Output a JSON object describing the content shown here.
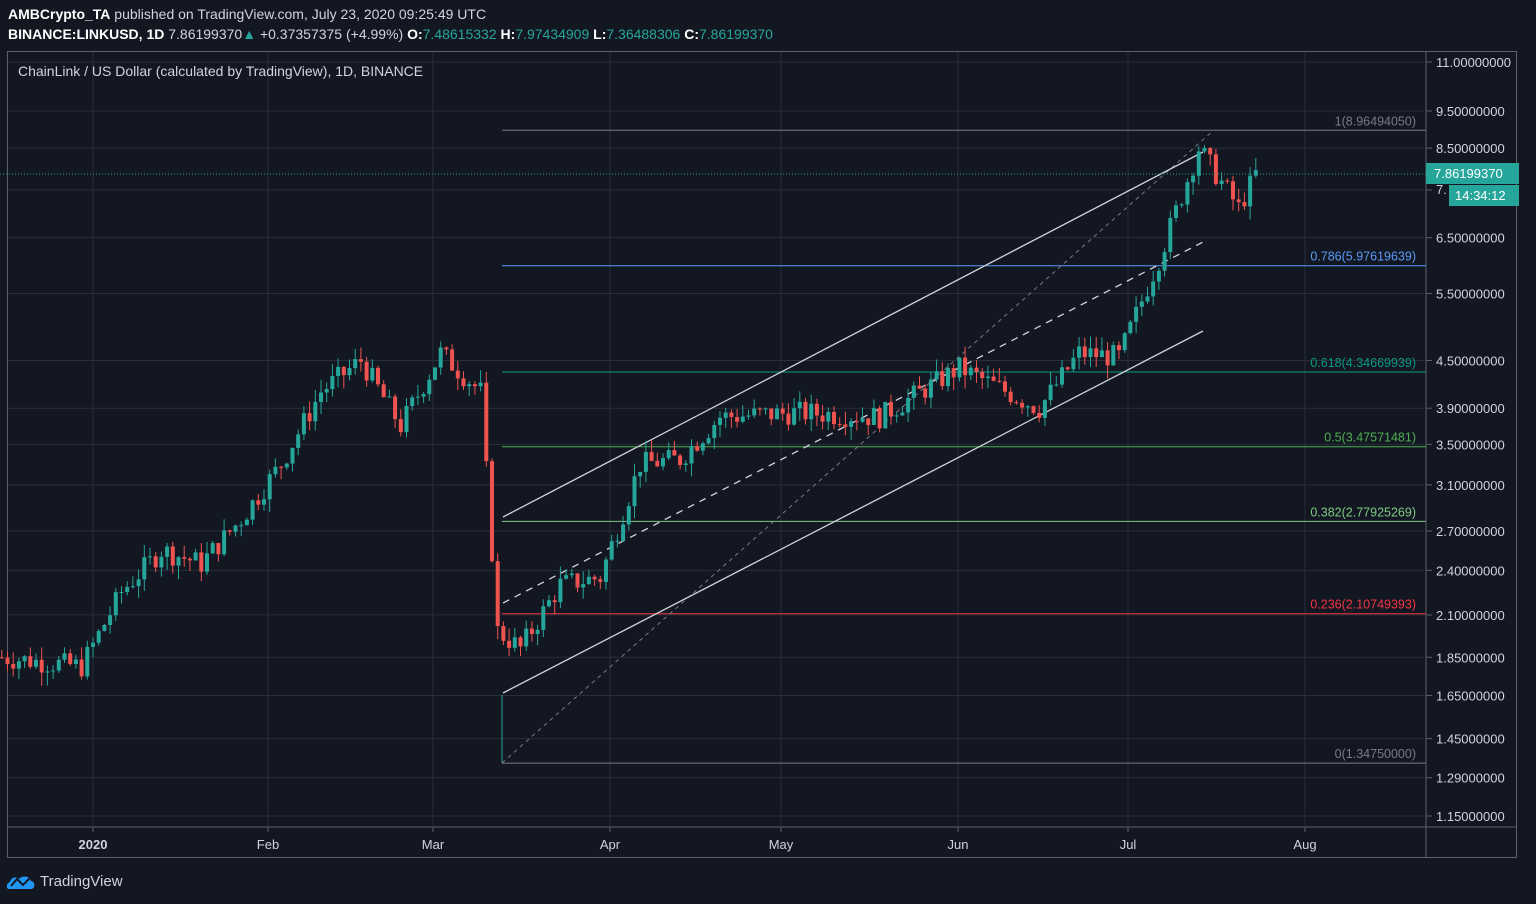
{
  "header": {
    "author": "AMBCrypto_TA",
    "published_text": "published on TradingView.com, July 23, 2020 09:25:49 UTC",
    "symbol": "BINANCE:LINKUSD, 1D",
    "last_price": "7.86199370",
    "change_arrow": "▲",
    "change": "+0.37357375 (+4.99%)",
    "ohlc": [
      {
        "label": "O:",
        "value": "7.48615332"
      },
      {
        "label": "H:",
        "value": "7.97434909"
      },
      {
        "label": "L:",
        "value": "7.36488306"
      },
      {
        "label": "C:",
        "value": "7.86199370"
      }
    ]
  },
  "legend": {
    "title": "ChainLink / US Dollar (calculated by TradingView), 1D, BINANCE"
  },
  "price_label": {
    "value": "7.86199370",
    "countdown": "14:34:12",
    "partial_tick": "7."
  },
  "footer": {
    "brand": "TradingView"
  },
  "colors": {
    "background": "#131722",
    "grid": "#2a2e39",
    "up": "#26a69a",
    "down": "#ef5350",
    "fib_1": "#787b86",
    "fib_0786": "#5b9cf6",
    "fib_0618": "#089981",
    "fib_05": "#4caf50",
    "fib_0382": "#81c784",
    "fib_0236": "#f23645",
    "fib_0": "#787b86",
    "channel": "#d1d4dc"
  },
  "chart_data": {
    "type": "candlestick",
    "title": "ChainLink / US Dollar (calculated by TradingView), 1D, BINANCE",
    "xlabel": "",
    "ylabel": "",
    "y_scale": "log",
    "ylim": [
      1.15,
      11.0
    ],
    "y_ticks": [
      "11.00000000",
      "9.50000000",
      "8.50000000",
      "7.50000000",
      "6.50000000",
      "5.50000000",
      "4.50000000",
      "3.90000000",
      "3.50000000",
      "3.10000000",
      "2.70000000",
      "2.40000000",
      "2.10000000",
      "1.85000000",
      "1.65000000",
      "1.45000000",
      "1.29000000",
      "1.15000000"
    ],
    "x_ticks": [
      "2020",
      "Feb",
      "Mar",
      "Apr",
      "May",
      "Jun",
      "Jul",
      "Aug"
    ],
    "grid": true,
    "fibonacci_retracement": [
      {
        "level": "1",
        "price": 8.9649405,
        "label": "1(8.96494050)"
      },
      {
        "level": "0.786",
        "price": 5.97619639,
        "label": "0.786(5.97619639)"
      },
      {
        "level": "0.618",
        "price": 4.34669939,
        "label": "0.618(4.34669939)"
      },
      {
        "level": "0.5",
        "price": 3.47571481,
        "label": "0.5(3.47571481)"
      },
      {
        "level": "0.382",
        "price": 2.77925269,
        "label": "0.382(2.77925269)"
      },
      {
        "level": "0.236",
        "price": 2.10749393,
        "label": "0.236(2.10749393)"
      },
      {
        "level": "0",
        "price": 1.3475,
        "label": "0(1.34750000)"
      }
    ],
    "last": {
      "open": 7.48615332,
      "high": 7.97434909,
      "low": 7.36488306,
      "close": 7.8619937,
      "change": 0.37357375,
      "change_pct": 4.99
    },
    "approx_weekly_closes": [
      {
        "date": "2019-12-16",
        "close": 1.85
      },
      {
        "date": "2019-12-30",
        "close": 1.8
      },
      {
        "date": "2020-01-06",
        "close": 2.25
      },
      {
        "date": "2020-01-13",
        "close": 2.55
      },
      {
        "date": "2020-01-20",
        "close": 2.45
      },
      {
        "date": "2020-01-27",
        "close": 2.8
      },
      {
        "date": "2020-02-03",
        "close": 3.3
      },
      {
        "date": "2020-02-10",
        "close": 4.1
      },
      {
        "date": "2020-02-17",
        "close": 4.5
      },
      {
        "date": "2020-02-24",
        "close": 3.7
      },
      {
        "date": "2020-03-02",
        "close": 4.6
      },
      {
        "date": "2020-03-09",
        "close": 4.1
      },
      {
        "date": "2020-03-12",
        "close": 2.0
      },
      {
        "date": "2020-03-16",
        "close": 1.9
      },
      {
        "date": "2020-03-23",
        "close": 2.3
      },
      {
        "date": "2020-03-30",
        "close": 2.35
      },
      {
        "date": "2020-04-06",
        "close": 3.3
      },
      {
        "date": "2020-04-13",
        "close": 3.35
      },
      {
        "date": "2020-04-20",
        "close": 3.8
      },
      {
        "date": "2020-05-04",
        "close": 3.85
      },
      {
        "date": "2020-05-18",
        "close": 3.8
      },
      {
        "date": "2020-06-01",
        "close": 4.4
      },
      {
        "date": "2020-06-15",
        "close": 3.9
      },
      {
        "date": "2020-06-22",
        "close": 4.6
      },
      {
        "date": "2020-06-29",
        "close": 4.55
      },
      {
        "date": "2020-07-06",
        "close": 6.1
      },
      {
        "date": "2020-07-13",
        "close": 8.5
      },
      {
        "date": "2020-07-20",
        "close": 7.1
      },
      {
        "date": "2020-07-23",
        "close": 7.86
      }
    ]
  }
}
